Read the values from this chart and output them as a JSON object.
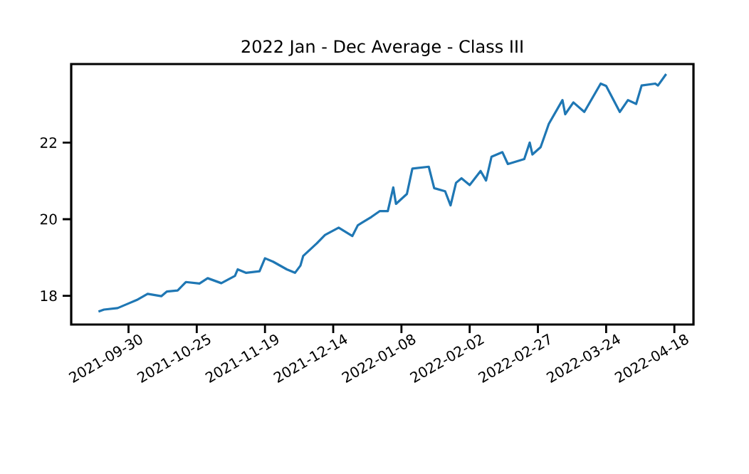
{
  "chart_data": {
    "type": "line",
    "title": "2022 Jan - Dec Average - Class III",
    "x": [
      "2021-09-19",
      "2021-09-21",
      "2021-09-26",
      "2021-09-30",
      "2021-10-03",
      "2021-10-07",
      "2021-10-12",
      "2021-10-14",
      "2021-10-18",
      "2021-10-21",
      "2021-10-26",
      "2021-10-29",
      "2021-11-03",
      "2021-11-08",
      "2021-11-09",
      "2021-11-12",
      "2021-11-17",
      "2021-11-19",
      "2021-11-22",
      "2021-11-27",
      "2021-11-30",
      "2021-12-02",
      "2021-12-03",
      "2021-12-08",
      "2021-12-11",
      "2021-12-16",
      "2021-12-21",
      "2021-12-23",
      "2021-12-28",
      "2021-12-31",
      "2022-01-03",
      "2022-01-05",
      "2022-01-06",
      "2022-01-10",
      "2022-01-12",
      "2022-01-18",
      "2022-01-20",
      "2022-01-24",
      "2022-01-26",
      "2022-01-28",
      "2022-01-30",
      "2022-02-02",
      "2022-02-06",
      "2022-02-08",
      "2022-02-10",
      "2022-02-14",
      "2022-02-16",
      "2022-02-22",
      "2022-02-24",
      "2022-02-25",
      "2022-02-28",
      "2022-03-03",
      "2022-03-08",
      "2022-03-09",
      "2022-03-12",
      "2022-03-16",
      "2022-03-22",
      "2022-03-24",
      "2022-03-29",
      "2022-04-01",
      "2022-04-04",
      "2022-04-06",
      "2022-04-11",
      "2022-04-12",
      "2022-04-15"
    ],
    "series": [
      {
        "color": "#1f77b4",
        "values": [
          17.59,
          17.64,
          17.68,
          17.8,
          17.89,
          18.05,
          17.99,
          18.11,
          18.14,
          18.36,
          18.32,
          18.46,
          18.33,
          18.52,
          18.69,
          18.6,
          18.64,
          18.98,
          18.89,
          18.69,
          18.6,
          18.79,
          19.04,
          19.37,
          19.59,
          19.78,
          19.56,
          19.84,
          20.06,
          20.21,
          20.21,
          20.83,
          20.4,
          20.66,
          21.32,
          21.37,
          20.81,
          20.73,
          20.36,
          20.95,
          21.07,
          20.89,
          21.26,
          21.01,
          21.63,
          21.75,
          21.44,
          21.57,
          22.0,
          21.69,
          21.88,
          22.49,
          23.11,
          22.74,
          23.05,
          22.8,
          23.54,
          23.48,
          22.8,
          23.11,
          23.01,
          23.49,
          23.54,
          23.49,
          23.79
        ]
      }
    ],
    "xlim": [
      "2021-09-09",
      "2022-04-25"
    ],
    "xticks": [
      "2021-09-30",
      "2021-10-25",
      "2021-11-19",
      "2021-12-14",
      "2022-01-08",
      "2022-02-02",
      "2022-02-27",
      "2022-03-24",
      "2022-04-18"
    ],
    "ylim": [
      17.25,
      24.05
    ],
    "yticks": [
      18,
      20,
      22
    ],
    "grid": false,
    "marker": "none",
    "line_style": "solid"
  }
}
